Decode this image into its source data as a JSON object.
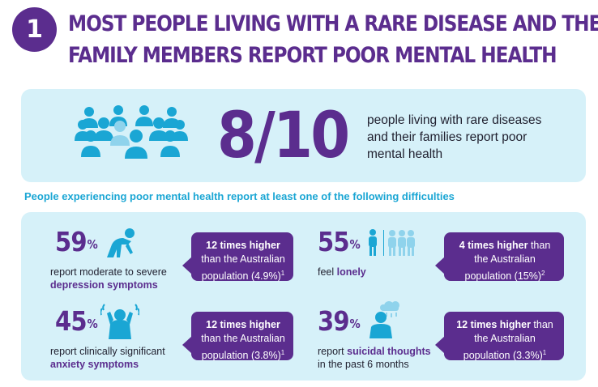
{
  "section_number": "1",
  "headline": {
    "line1": "MOST PEOPLE LIVING WITH A RARE DISEASE AND THEIR",
    "line2": "FAMILY MEMBERS REPORT POOR MENTAL HEALTH"
  },
  "key_stat": {
    "value": "8/10",
    "description": "people living with rare diseases and their families report poor mental health"
  },
  "sub_heading": "People experiencing poor mental health report at least one of the following difficulties",
  "items": [
    {
      "percent": "59",
      "percent_sign": "%",
      "label_prefix": "report moderate to severe",
      "label_highlight": "depression symptoms",
      "label_suffix": "",
      "callout_bold": "12 times higher",
      "callout_rest_1": "than the Australian",
      "callout_rest_2": "population (4.9%)",
      "callout_ref": "1",
      "icon": "person-kneeling-icon"
    },
    {
      "percent": "55",
      "percent_sign": "%",
      "label_prefix": "feel",
      "label_highlight": "lonely",
      "label_suffix": "",
      "callout_bold": "4 times higher",
      "callout_rest_1": "than the Australian",
      "callout_rest_2": "population (15%)",
      "callout_ref": "2",
      "icon": "person-apart-from-group-icon"
    },
    {
      "percent": "45",
      "percent_sign": "%",
      "label_prefix": "report clinically significant",
      "label_highlight": "anxiety symptoms",
      "label_suffix": "",
      "callout_bold": "12 times higher",
      "callout_rest_1": "than the Australian",
      "callout_rest_2": "population (3.8%)",
      "callout_ref": "1",
      "icon": "person-holding-head-icon"
    },
    {
      "percent": "39",
      "percent_sign": "%",
      "label_prefix": "report",
      "label_highlight": "suicidal thoughts",
      "label_suffix": "in the past 6 months",
      "callout_bold": "12 times higher",
      "callout_rest_1": "than the Australian",
      "callout_rest_2": "population (3.3%)",
      "callout_ref": "1",
      "icon": "person-under-rain-cloud-icon"
    }
  ],
  "colors": {
    "purple": "#5b2d8e",
    "cyan_text": "#1aa6d4",
    "panel_bg": "#d6f1f9",
    "icon_blue": "#1aa6d4",
    "icon_light_blue": "#8fd3ec"
  }
}
